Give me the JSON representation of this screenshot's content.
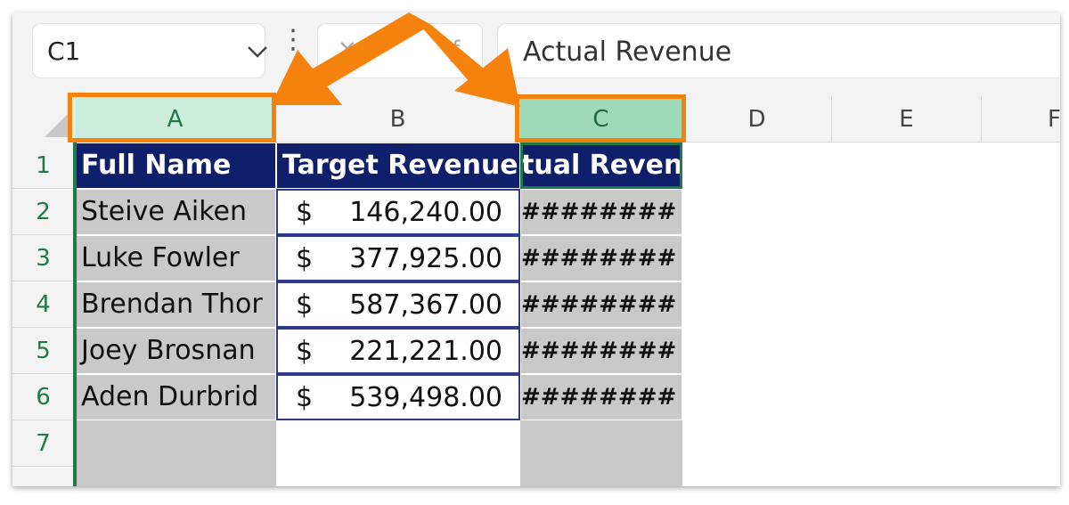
{
  "name_box": {
    "value": "C1"
  },
  "formula_bar": {
    "value": "Actual Revenue"
  },
  "columns": [
    "A",
    "B",
    "C",
    "D",
    "E",
    "F"
  ],
  "rows": [
    "1",
    "2",
    "3",
    "4",
    "5",
    "6",
    "7"
  ],
  "table": {
    "headers": [
      "Full Name",
      "Target Revenue",
      "tual Reven"
    ],
    "rows": [
      {
        "name": "Steive Aiken",
        "currency": "$",
        "target": "146,240.00",
        "actual": "########"
      },
      {
        "name": "Luke Fowler",
        "currency": "$",
        "target": "377,925.00",
        "actual": "########"
      },
      {
        "name": "Brendan Thor",
        "currency": "$",
        "target": "587,367.00",
        "actual": "########"
      },
      {
        "name": "Joey Brosnan",
        "currency": "$",
        "target": "221,221.00",
        "actual": "########"
      },
      {
        "name": "Aden Durbrid",
        "currency": "$",
        "target": "539,498.00",
        "actual": "########"
      }
    ]
  },
  "colors": {
    "header_fill": "#0f1f6b",
    "name_fill": "#c9c9c9",
    "selection_green": "#1e7a46",
    "highlight_orange": "#f5820d"
  }
}
